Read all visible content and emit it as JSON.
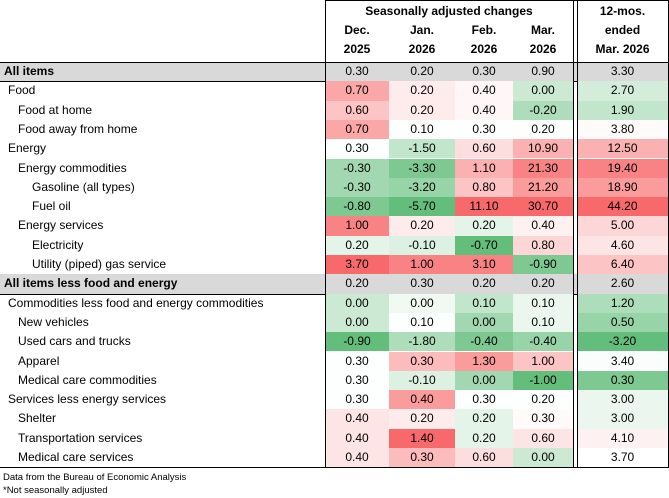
{
  "header": {
    "group": "Seasonally adjusted changes",
    "months": [
      [
        "Dec.",
        "2025"
      ],
      [
        "Jan.",
        "2026"
      ],
      [
        "Feb.",
        "2026"
      ],
      [
        "Mar.",
        "2026"
      ]
    ],
    "trailing": [
      "12-mos.",
      "ended",
      "Mar. 2026"
    ]
  },
  "rows": [
    {
      "label": "All items",
      "values": [
        "0.30",
        "0.20",
        "0.30",
        "0.90",
        "3.30"
      ]
    },
    {
      "label": "Food",
      "values": [
        "0.70",
        "0.20",
        "0.40",
        "0.00",
        "2.70"
      ]
    },
    {
      "label": "Food at home",
      "values": [
        "0.60",
        "0.20",
        "0.40",
        "-0.20",
        "1.90"
      ]
    },
    {
      "label": "Food away from home",
      "values": [
        "0.70",
        "0.10",
        "0.30",
        "0.20",
        "3.80"
      ]
    },
    {
      "label": "Energy",
      "values": [
        "0.30",
        "-1.50",
        "0.60",
        "10.90",
        "12.50"
      ]
    },
    {
      "label": "Energy commodities",
      "values": [
        "-0.30",
        "-3.30",
        "1.10",
        "21.30",
        "19.40"
      ]
    },
    {
      "label": "Gasoline (all types)",
      "values": [
        "-0.30",
        "-3.20",
        "0.80",
        "21.20",
        "18.90"
      ]
    },
    {
      "label": "Fuel oil",
      "values": [
        "-0.80",
        "-5.70",
        "11.10",
        "30.70",
        "44.20"
      ]
    },
    {
      "label": "Energy services",
      "values": [
        "1.00",
        "0.20",
        "0.20",
        "0.40",
        "5.00"
      ]
    },
    {
      "label": "Electricity",
      "values": [
        "0.20",
        "-0.10",
        "-0.70",
        "0.80",
        "4.60"
      ]
    },
    {
      "label": "Utility (piped) gas service",
      "values": [
        "3.70",
        "1.00",
        "3.10",
        "-0.90",
        "6.40"
      ]
    },
    {
      "label": "All items less food and energy",
      "values": [
        "0.20",
        "0.30",
        "0.20",
        "0.20",
        "2.60"
      ]
    },
    {
      "label": "Commodities less food and energy commodities",
      "values": [
        "0.00",
        "0.00",
        "0.10",
        "0.10",
        "1.20"
      ]
    },
    {
      "label": "New vehicles",
      "values": [
        "0.00",
        "0.10",
        "0.00",
        "0.10",
        "0.50"
      ]
    },
    {
      "label": "Used cars and trucks",
      "values": [
        "-0.90",
        "-1.80",
        "-0.40",
        "-0.40",
        "-3.20"
      ]
    },
    {
      "label": "Apparel",
      "values": [
        "0.30",
        "0.30",
        "1.30",
        "1.00",
        "3.40"
      ]
    },
    {
      "label": "Medical care commodities",
      "values": [
        "0.30",
        "-0.10",
        "0.00",
        "-1.00",
        "0.30"
      ]
    },
    {
      "label": "Services less energy services",
      "values": [
        "0.30",
        "0.40",
        "0.30",
        "0.20",
        "3.00"
      ]
    },
    {
      "label": "Shelter",
      "values": [
        "0.40",
        "0.20",
        "0.20",
        "0.30",
        "3.00"
      ]
    },
    {
      "label": "Transportation services",
      "values": [
        "0.40",
        "1.40",
        "0.20",
        "0.60",
        "4.10"
      ]
    },
    {
      "label": "Medical care services",
      "values": [
        "0.40",
        "0.30",
        "0.60",
        "0.00",
        "3.70"
      ]
    }
  ],
  "notes": [
    "Data from the Bureau of Economic Analysis",
    "*Not seasonally adjusted"
  ]
}
